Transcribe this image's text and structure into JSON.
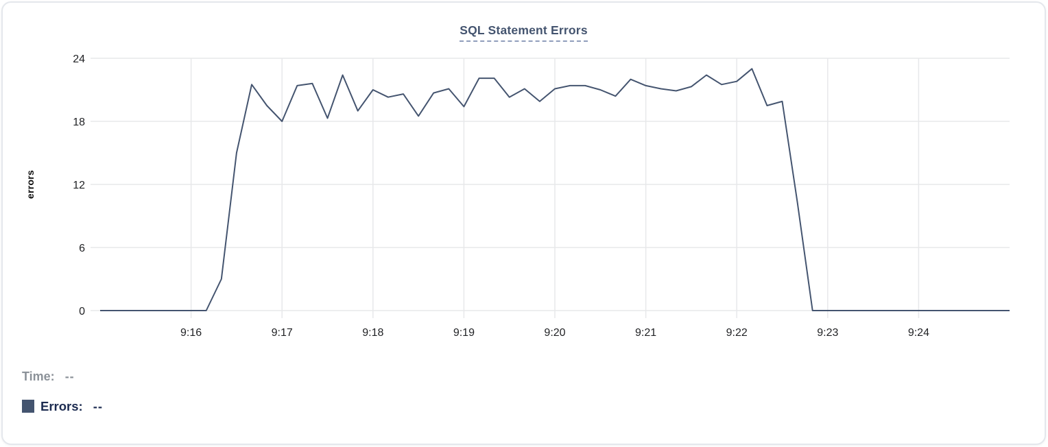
{
  "chart_data": {
    "type": "line",
    "title": "SQL Statement Errors",
    "xlabel": "",
    "ylabel": "errors",
    "ylim": [
      0,
      24
    ],
    "yticks": [
      0,
      6,
      12,
      18,
      24
    ],
    "x_tick_labels": [
      "9:16",
      "9:17",
      "9:18",
      "9:19",
      "9:20",
      "9:21",
      "9:22",
      "9:23",
      "9:24"
    ],
    "x_start": "9:15:00",
    "x_end": "9:25:00",
    "point_interval_seconds": 10,
    "grid": true,
    "legend_position": "none",
    "times": [
      "9:15:00",
      "9:15:10",
      "9:15:20",
      "9:15:30",
      "9:15:40",
      "9:15:50",
      "9:16:00",
      "9:16:10",
      "9:16:20",
      "9:16:30",
      "9:16:40",
      "9:16:50",
      "9:17:00",
      "9:17:10",
      "9:17:20",
      "9:17:30",
      "9:17:40",
      "9:17:50",
      "9:18:00",
      "9:18:10",
      "9:18:20",
      "9:18:30",
      "9:18:40",
      "9:18:50",
      "9:19:00",
      "9:19:10",
      "9:19:20",
      "9:19:30",
      "9:19:40",
      "9:19:50",
      "9:20:00",
      "9:20:10",
      "9:20:20",
      "9:20:30",
      "9:20:40",
      "9:20:50",
      "9:21:00",
      "9:21:10",
      "9:21:20",
      "9:21:30",
      "9:21:40",
      "9:21:50",
      "9:22:00",
      "9:22:10",
      "9:22:20",
      "9:22:30",
      "9:22:40",
      "9:22:50",
      "9:23:00",
      "9:23:10",
      "9:23:20",
      "9:23:30",
      "9:23:40",
      "9:23:50",
      "9:24:00",
      "9:24:10",
      "9:24:20",
      "9:24:30",
      "9:24:40",
      "9:24:50",
      "9:25:00"
    ],
    "series": [
      {
        "name": "Errors",
        "values": [
          0,
          0,
          0,
          0,
          0,
          0,
          0,
          0,
          3,
          15,
          21.5,
          19.5,
          18,
          21.4,
          21.6,
          18.3,
          22.4,
          19,
          21,
          20.3,
          20.6,
          18.5,
          20.7,
          21.1,
          19.4,
          22.1,
          22.1,
          20.3,
          21.1,
          19.9,
          21.1,
          21.4,
          21.4,
          21,
          20.4,
          22,
          21.4,
          21.1,
          20.9,
          21.3,
          22.4,
          21.5,
          21.8,
          23,
          19.5,
          19.9,
          10.3,
          0,
          0,
          0,
          0,
          0,
          0,
          0,
          0,
          0,
          0,
          0,
          0,
          0,
          0
        ]
      }
    ]
  },
  "tooltip": {
    "time_label": "Time:",
    "time_value": "--",
    "errors_label": "Errors:",
    "errors_value": "--"
  },
  "colors": {
    "title": "#44546F",
    "underline": "#8F9DBB",
    "axis": "#1F2023",
    "grid": "#E7E8EA",
    "line": "#44546F",
    "timec": "#8B9198",
    "errc": "#1C2B50"
  }
}
